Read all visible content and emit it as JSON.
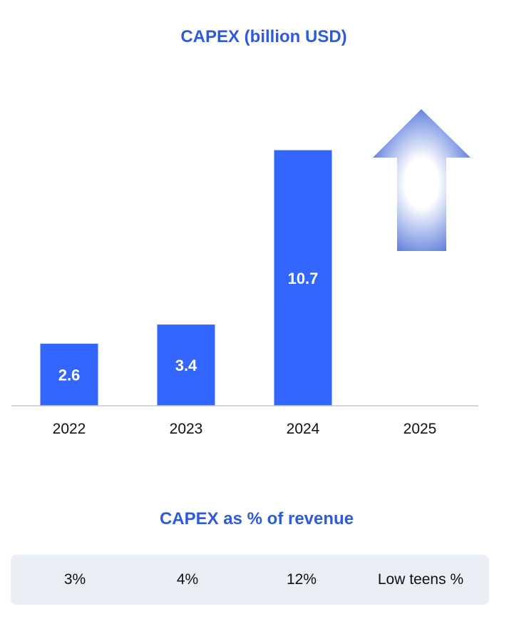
{
  "colors": {
    "bar": "#3366ff",
    "title": "#2f5bd8",
    "axis": "#c8c8c8",
    "panel": "#e9eef7",
    "arrow": "#2f5bd8"
  },
  "chart_data": {
    "type": "bar",
    "title": "CAPEX (billion USD)",
    "xlabel": "",
    "ylabel": "",
    "categories": [
      "2022",
      "2023",
      "2024",
      "2025"
    ],
    "values": [
      2.6,
      3.4,
      10.7,
      null
    ],
    "data_labels": [
      "2.6",
      "3.4",
      "10.7",
      ""
    ],
    "ylim": [
      0,
      12
    ],
    "grid": false,
    "annotations": [
      {
        "type": "up-arrow",
        "category": "2025"
      }
    ]
  },
  "revenue_section": {
    "title": "CAPEX as % of revenue",
    "values": [
      "3%",
      "4%",
      "12%",
      "Low teens %"
    ]
  }
}
